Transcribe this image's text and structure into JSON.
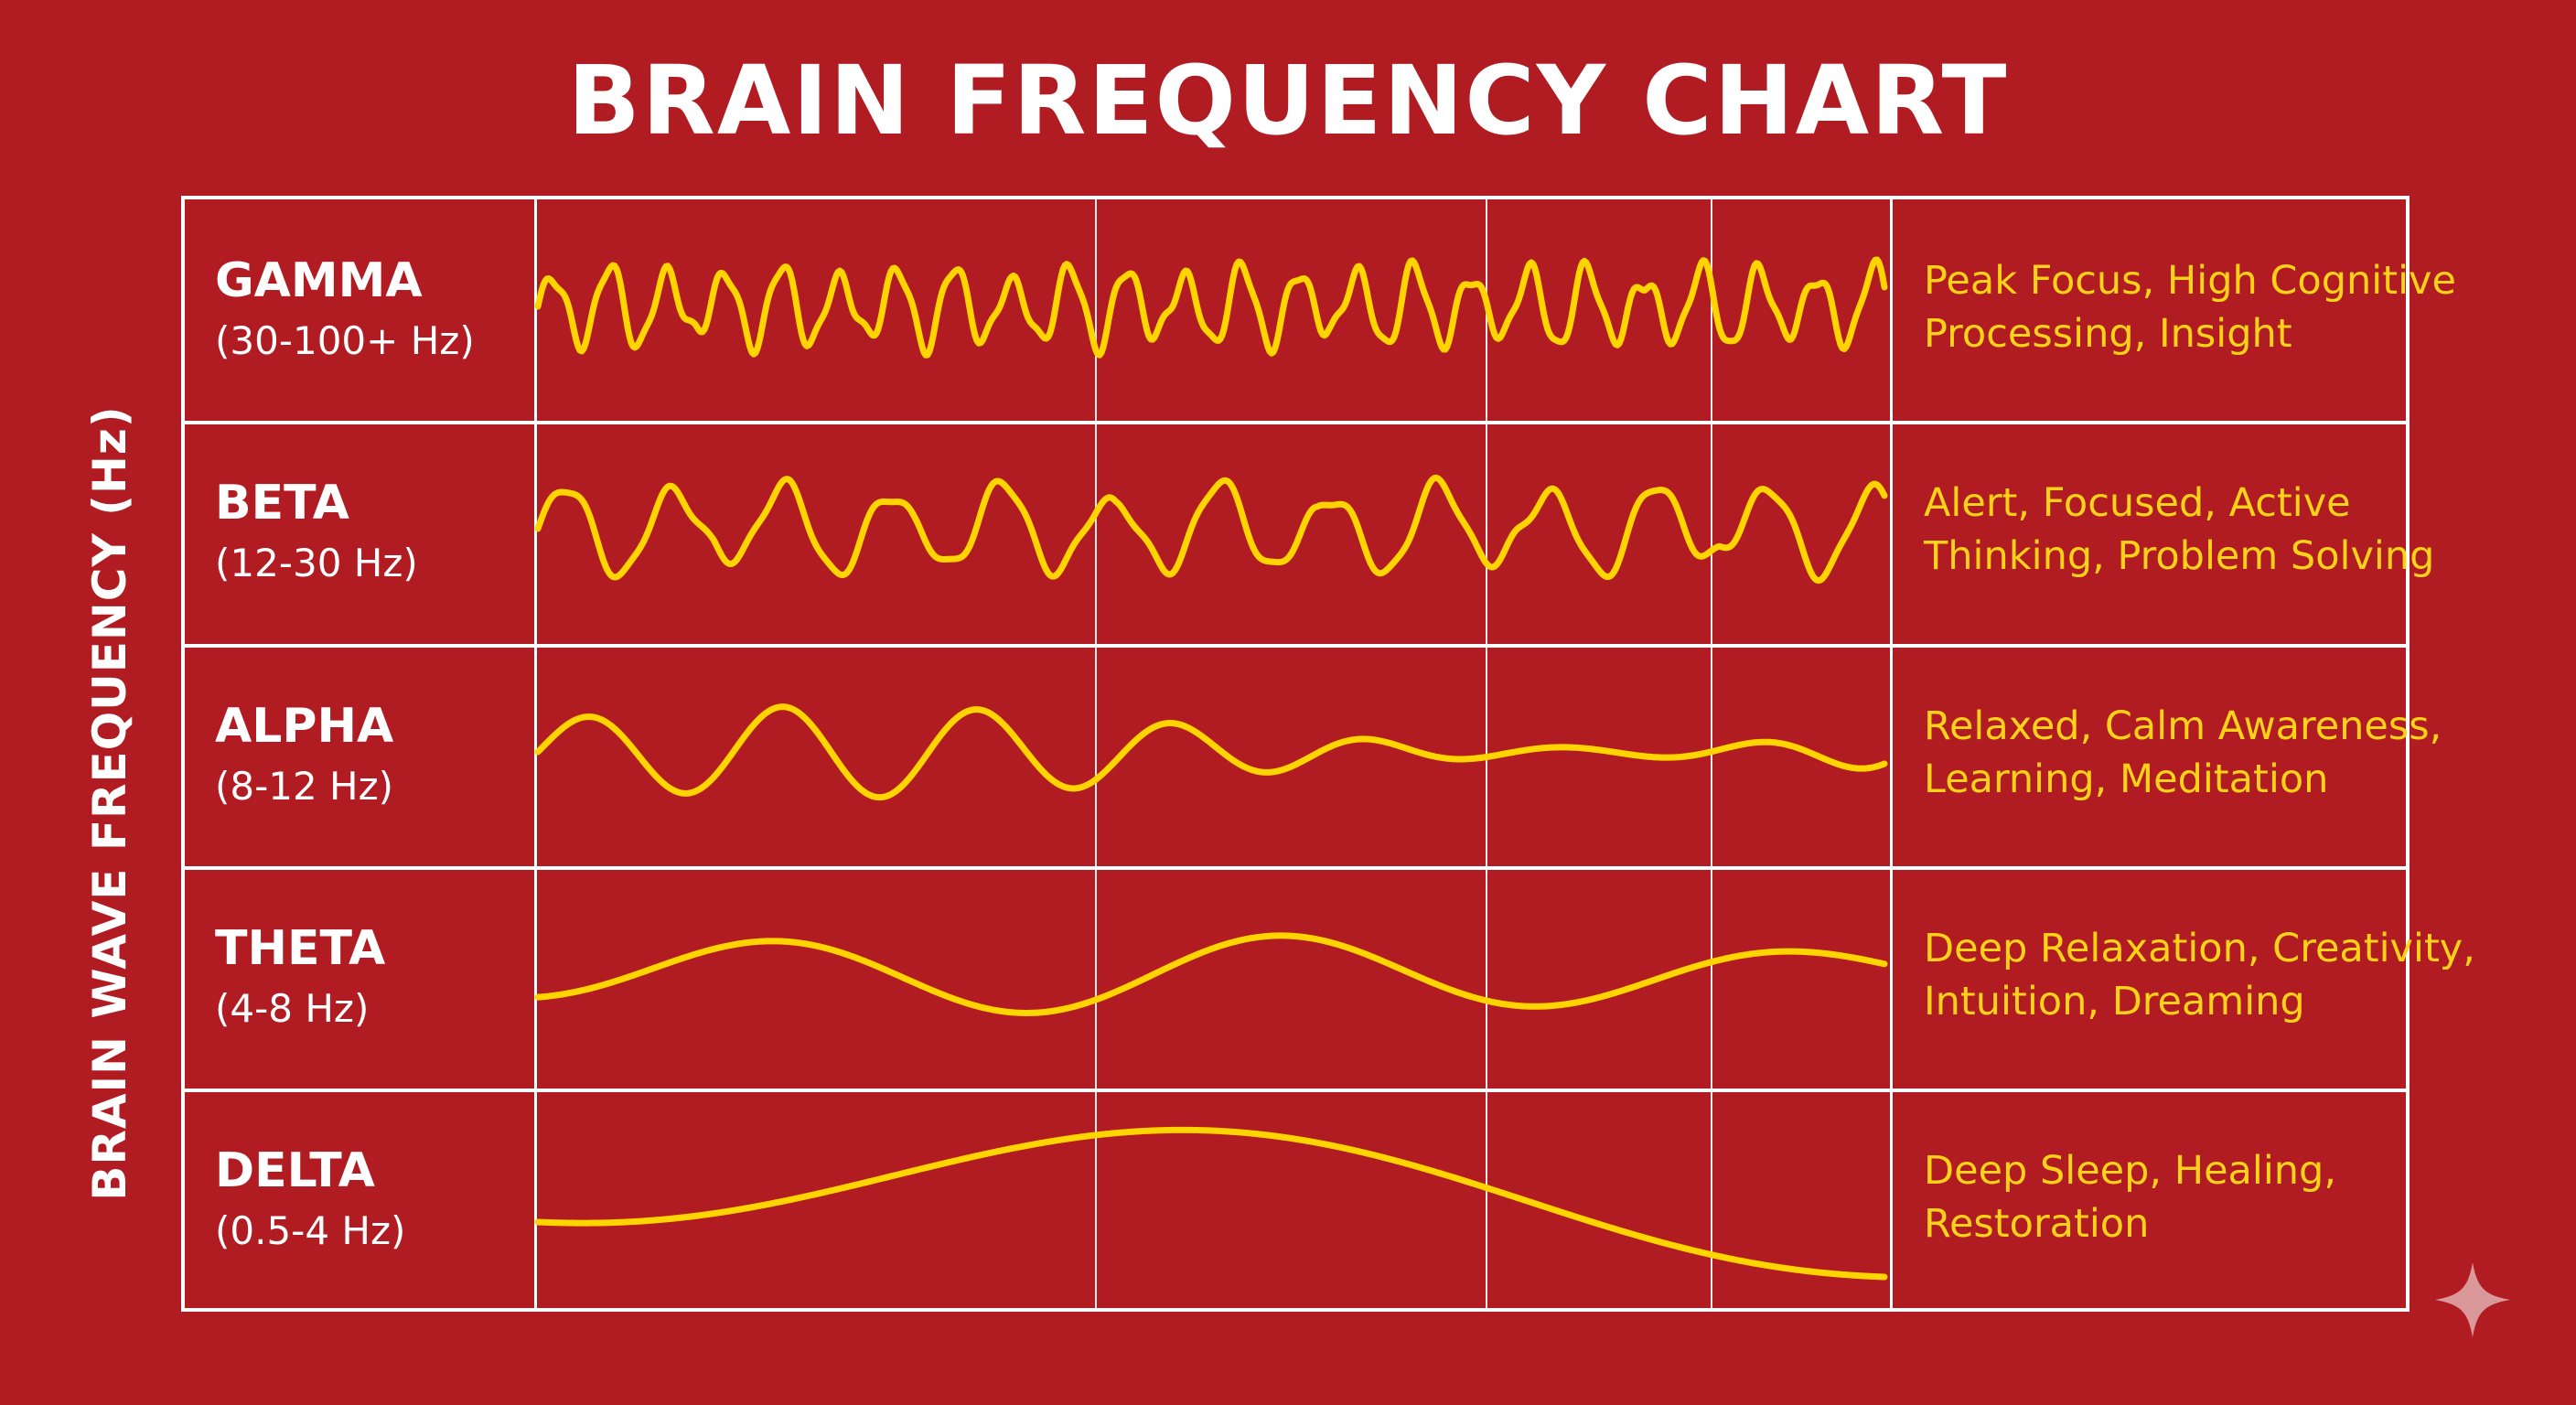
{
  "title": "BRAIN FREQUENCY CHART",
  "y_axis_label": "BRAIN WAVE FREQUENCY (Hz)",
  "colors": {
    "background": "#b01c22",
    "grid": "#ffffff",
    "wave": "#ffd400",
    "description": "#ffd21a"
  },
  "bands": [
    {
      "name": "GAMMA",
      "range": "(30-100+ Hz)",
      "description": [
        "Peak Focus, High Cognitive",
        "Processing, Insight"
      ]
    },
    {
      "name": "BETA",
      "range": "(12-30 Hz)",
      "description": [
        "Alert, Focused, Active",
        "Thinking, Problem Solving"
      ]
    },
    {
      "name": "ALPHA",
      "range": "(8-12 Hz)",
      "description": [
        "Relaxed, Calm Awareness,",
        "Learning, Meditation"
      ]
    },
    {
      "name": "THETA",
      "range": "(4-8 Hz)",
      "description": [
        "Deep Relaxation, Creativity,",
        "Intuition, Dreaming"
      ]
    },
    {
      "name": "DELTA",
      "range": "(0.5-4 Hz)",
      "description": [
        "Deep Sleep, Healing,",
        "Restoration"
      ]
    }
  ],
  "watermark_icon": "sparkle-icon"
}
